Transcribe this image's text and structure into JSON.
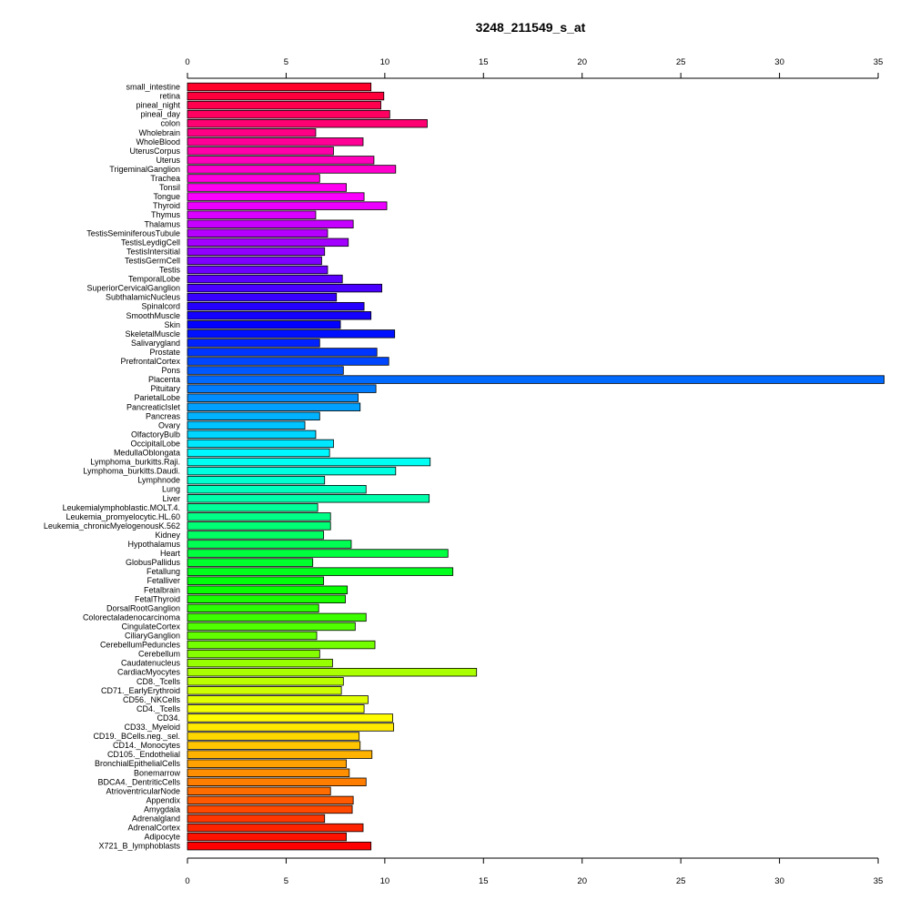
{
  "chart_data": {
    "type": "bar",
    "orientation": "horizontal",
    "title": "3248_211549_s_at",
    "xlabel": "",
    "ylabel": "",
    "xlim": [
      0,
      35
    ],
    "x_ticks": [
      0,
      5,
      10,
      15,
      20,
      25,
      30,
      35
    ],
    "x_tick_labels": [
      "0",
      "5",
      "10",
      "15",
      "20",
      "25",
      "30",
      "35"
    ],
    "axes_positions": [
      "top",
      "bottom"
    ],
    "grid": false,
    "color_scheme": "rainbow (red to red, hue gradient per bar)",
    "categories": [
      "small_intestine",
      "retina",
      "pineal_night",
      "pineal_day",
      "colon",
      "Wholebrain",
      "WholeBlood",
      "UterusCorpus",
      "Uterus",
      "TrigeminalGanglion",
      "Trachea",
      "Tonsil",
      "Tongue",
      "Thyroid",
      "Thymus",
      "Thalamus",
      "TestisSeminiferousTubule",
      "TestisLeydigCell",
      "TestisIntersitial",
      "TestisGermCell",
      "Testis",
      "TemporalLobe",
      "SuperiorCervicalGanglion",
      "SubthalamicNucleus",
      "Spinalcord",
      "SmoothMuscle",
      "Skin",
      "SkeletalMuscle",
      "Salivarygland",
      "Prostate",
      "PrefrontalCortex",
      "Pons",
      "Placenta",
      "Pituitary",
      "ParietalLobe",
      "PancreaticIslet",
      "Pancreas",
      "Ovary",
      "OlfactoryBulb",
      "OccipitalLobe",
      "MedullaOblongata",
      "Lymphoma_burkitts.Raji.",
      "Lymphoma_burkitts.Daudi.",
      "Lymphnode",
      "Lung",
      "Liver",
      "Leukemialymphoblastic.MOLT.4.",
      "Leukemia_promyelocytic.HL.60",
      "Leukemia_chronicMyelogenousK.562",
      "Kidney",
      "Hypothalamus",
      "Heart",
      "GlobusPallidus",
      "Fetallung",
      "Fetalliver",
      "Fetalbrain",
      "FetalThyroid",
      "DorsalRootGanglion",
      "Colorectaladenocarcinoma",
      "CingulateCortex",
      "CiliaryGanglion",
      "CerebellumPeduncles",
      "Cerebellum",
      "Caudatenucleus",
      "CardiacMyocytes",
      "CD8._Tcells",
      "CD71._EarlyErythroid",
      "CD56._NKCells",
      "CD4._Tcells",
      "CD34.",
      "CD33._Myeloid",
      "CD19._BCells.neg._sel.",
      "CD14._Monocytes",
      "CD105._Endothelial",
      "BronchialEpithelialCells",
      "Bonemarrow",
      "BDCA4._DentriticCells",
      "AtrioventricularNode",
      "Appendix",
      "Amygdala",
      "Adrenalgland",
      "AdrenalCortex",
      "Adipocyte",
      "X721_B_lymphoblasts"
    ],
    "values": [
      9.3,
      9.95,
      9.8,
      10.25,
      12.15,
      6.5,
      8.9,
      7.4,
      9.45,
      10.55,
      6.7,
      8.05,
      8.95,
      10.1,
      6.5,
      8.4,
      7.1,
      8.15,
      6.95,
      6.8,
      7.1,
      7.85,
      9.85,
      7.55,
      8.95,
      9.3,
      7.75,
      10.5,
      6.7,
      9.6,
      10.2,
      7.9,
      35.3,
      9.55,
      8.65,
      8.75,
      6.7,
      5.95,
      6.5,
      7.4,
      7.2,
      12.3,
      10.55,
      6.95,
      9.05,
      12.25,
      6.6,
      7.25,
      7.25,
      6.9,
      8.3,
      13.2,
      6.35,
      13.45,
      6.9,
      8.1,
      8.0,
      6.65,
      9.05,
      8.5,
      6.55,
      9.5,
      6.7,
      7.35,
      14.65,
      7.9,
      7.8,
      9.15,
      8.95,
      10.4,
      10.45,
      8.7,
      8.75,
      9.35,
      8.05,
      8.2,
      9.05,
      7.25,
      8.4,
      8.35,
      6.95,
      8.9,
      8.05,
      9.3
    ]
  }
}
